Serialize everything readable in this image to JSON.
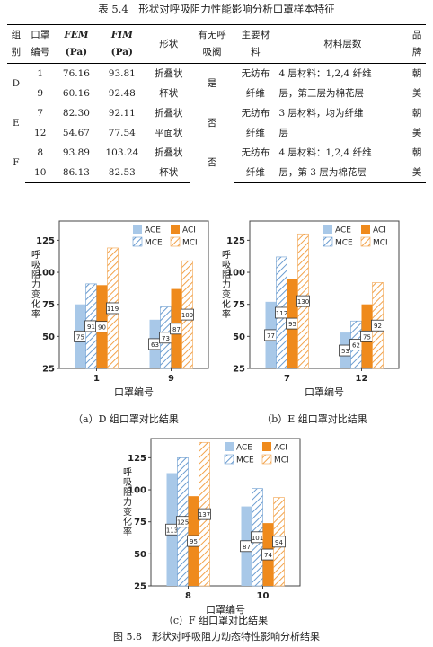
{
  "table_caption": "表 5.4　形状对呼吸阻力性能影响分析口罩样本特征",
  "table": {
    "headers": {
      "group": [
        "组",
        "别"
      ],
      "mask_no": [
        "口罩",
        "编号"
      ],
      "fem": [
        "FEM",
        "(Pa)"
      ],
      "fim": [
        "FIM",
        "(Pa)"
      ],
      "shape": "形状",
      "valve": [
        "有无呼",
        "吸阀"
      ],
      "material": [
        "主要材",
        "料"
      ],
      "layers": "材料层数",
      "brand": [
        "品",
        "牌"
      ]
    },
    "groups": [
      {
        "group": "D",
        "valve": "是",
        "material": [
          "无纺布",
          "纤维"
        ],
        "layers": [
          "4 层材料：1,2,4 纤维",
          "层，第三层为棉花层"
        ],
        "brand": [
          "朝",
          "美"
        ],
        "rows": [
          {
            "no": "1",
            "fem": "76.16",
            "fim": "93.81",
            "shape": "折叠状"
          },
          {
            "no": "9",
            "fem": "60.16",
            "fim": "92.48",
            "shape": "杯状"
          }
        ]
      },
      {
        "group": "E",
        "valve": "否",
        "material": [
          "无纺布",
          "纤维"
        ],
        "layers": [
          "3 层材料，均为纤维",
          "层"
        ],
        "brand": [
          "朝",
          "美"
        ],
        "rows": [
          {
            "no": "7",
            "fem": "82.30",
            "fim": "92.11",
            "shape": "折叠状"
          },
          {
            "no": "12",
            "fem": "54.67",
            "fim": "77.54",
            "shape": "平面状"
          }
        ]
      },
      {
        "group": "F",
        "valve": "否",
        "material": [
          "无纺布",
          "纤维"
        ],
        "layers": [
          "4 层材料：1,2,4 纤维",
          "层，第 3 层为棉花层"
        ],
        "brand": [
          "朝",
          "美"
        ],
        "rows": [
          {
            "no": "8",
            "fem": "93.89",
            "fim": "103.24",
            "shape": "折叠状"
          },
          {
            "no": "10",
            "fem": "86.13",
            "fim": "82.53",
            "shape": "杯状"
          }
        ]
      }
    ]
  },
  "legend": [
    "ACE",
    "ACI",
    "MCE",
    "MCI"
  ],
  "colors": {
    "ACE": "#a8c8e8",
    "ACI": "#ef8a1c",
    "MCE": "#6a9cd0",
    "MCI": "#f2a24a"
  },
  "chart_data": [
    {
      "type": "bar",
      "categories": [
        "1",
        "9"
      ],
      "series": [
        {
          "name": "ACE",
          "values": [
            75,
            63
          ]
        },
        {
          "name": "MCE",
          "values": [
            91,
            73
          ]
        },
        {
          "name": "ACI",
          "values": [
            90,
            87
          ]
        },
        {
          "name": "MCI",
          "values": [
            119,
            109
          ]
        }
      ],
      "labels": [
        [
          75,
          91,
          90,
          119
        ],
        [
          63,
          73,
          87,
          109
        ]
      ],
      "xlabel": "口罩编号",
      "ylabel": "呼吸阻力变化率",
      "ylim": [
        25,
        140
      ],
      "yticks": [
        25,
        50,
        75,
        100,
        125
      ],
      "caption": "（a）D 组口罩对比结果"
    },
    {
      "type": "bar",
      "categories": [
        "7",
        "12"
      ],
      "series": [
        {
          "name": "ACE",
          "values": [
            77,
            53
          ]
        },
        {
          "name": "MCE",
          "values": [
            112,
            62
          ]
        },
        {
          "name": "ACI",
          "values": [
            95,
            75
          ]
        },
        {
          "name": "MCI",
          "values": [
            130,
            92
          ]
        }
      ],
      "labels": [
        [
          77,
          112,
          95,
          130
        ],
        [
          53,
          62,
          75,
          92
        ]
      ],
      "xlabel": "口罩编号",
      "ylabel": "呼吸阻力变化率",
      "ylim": [
        25,
        140
      ],
      "yticks": [
        25,
        50,
        75,
        100,
        125
      ],
      "caption": "（b）E 组口罩对比结果"
    },
    {
      "type": "bar",
      "categories": [
        "8",
        "10"
      ],
      "series": [
        {
          "name": "ACE",
          "values": [
            113,
            87
          ]
        },
        {
          "name": "MCE",
          "values": [
            125,
            101
          ]
        },
        {
          "name": "ACI",
          "values": [
            95,
            74
          ]
        },
        {
          "name": "MCI",
          "values": [
            137,
            94
          ]
        }
      ],
      "labels": [
        [
          113,
          125,
          95,
          137
        ],
        [
          87,
          101,
          74,
          94
        ]
      ],
      "xlabel": "口罩编号",
      "ylabel": "呼吸阻力变化率",
      "ylim": [
        25,
        140
      ],
      "yticks": [
        25,
        50,
        75,
        100,
        125
      ],
      "caption": "（c）F 组口罩对比结果"
    }
  ],
  "figure_caption": "图 5.8　形状对呼吸阻力动态特性影响分析结果"
}
